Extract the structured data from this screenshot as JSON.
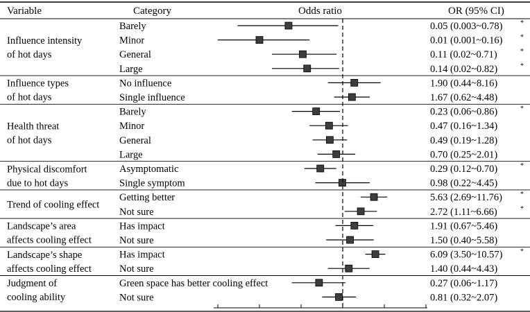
{
  "header": {
    "variable": "Variable",
    "category": "Category",
    "odds_ratio": "Odds ratio",
    "or_ci": "OR (95% CI)"
  },
  "groups": [
    {
      "variable": [
        "Influence intensity",
        "of hot days"
      ],
      "rows": [
        0,
        1,
        2,
        3
      ]
    },
    {
      "variable": [
        "Influence types",
        "of hot days"
      ],
      "rows": [
        4,
        5
      ]
    },
    {
      "variable": [
        "Health threat",
        "of hot days"
      ],
      "rows": [
        6,
        7,
        8,
        9
      ]
    },
    {
      "variable": [
        "Physical discomfort",
        "due to hot days"
      ],
      "rows": [
        10,
        11
      ]
    },
    {
      "variable": [
        "Trend of cooling effect"
      ],
      "rows": [
        12,
        13
      ]
    },
    {
      "variable": [
        "Landscape’s area",
        "affects cooling effect"
      ],
      "rows": [
        14,
        15
      ]
    },
    {
      "variable": [
        "Landscape’s shape",
        "affects cooling effect"
      ],
      "rows": [
        16,
        17
      ]
    },
    {
      "variable": [
        "Judgment of",
        "cooling ability"
      ],
      "rows": [
        18,
        19
      ]
    }
  ],
  "significance_marker": "*",
  "chart_data": {
    "type": "forest",
    "reference_line": 1,
    "x_scale": "log",
    "rows": [
      {
        "category": "Barely",
        "or": 0.05,
        "lower": 0.003,
        "upper": 0.78,
        "label": "0.05 (0.003~0.78)",
        "significant": true
      },
      {
        "category": "Minor",
        "or": 0.01,
        "lower": 0.001,
        "upper": 0.16,
        "label": "0.01 (0.001~0.16)",
        "significant": true
      },
      {
        "category": "General",
        "or": 0.11,
        "lower": 0.02,
        "upper": 0.71,
        "label": "0.11 (0.02~0.71)",
        "significant": true
      },
      {
        "category": "Large",
        "or": 0.14,
        "lower": 0.02,
        "upper": 0.82,
        "label": "0.14 (0.02~0.82)",
        "significant": true
      },
      {
        "category": "No influence",
        "or": 1.9,
        "lower": 0.44,
        "upper": 8.16,
        "label": "1.90 (0.44~8.16)",
        "significant": false
      },
      {
        "category": "Single influence",
        "or": 1.67,
        "lower": 0.62,
        "upper": 4.48,
        "label": "1.67 (0.62~4.48)",
        "significant": false
      },
      {
        "category": "Barely",
        "or": 0.23,
        "lower": 0.06,
        "upper": 0.86,
        "label": "0.23 (0.06~0.86)",
        "significant": true
      },
      {
        "category": "Minor",
        "or": 0.47,
        "lower": 0.16,
        "upper": 1.34,
        "label": "0.47 (0.16~1.34)",
        "significant": false
      },
      {
        "category": "General",
        "or": 0.49,
        "lower": 0.19,
        "upper": 1.28,
        "label": "0.49 (0.19~1.28)",
        "significant": false
      },
      {
        "category": "Large",
        "or": 0.7,
        "lower": 0.25,
        "upper": 2.01,
        "label": "0.70 (0.25~2.01)",
        "significant": false
      },
      {
        "category": "Asymptomatic",
        "or": 0.29,
        "lower": 0.12,
        "upper": 0.7,
        "label": "0.29 (0.12~0.70)",
        "significant": true
      },
      {
        "category": "Single symptom",
        "or": 0.98,
        "lower": 0.22,
        "upper": 4.45,
        "label": "0.98 (0.22~4.45)",
        "significant": false
      },
      {
        "category": "Getting better",
        "or": 5.63,
        "lower": 2.69,
        "upper": 11.76,
        "label": "5.63 (2.69~11.76)",
        "significant": true
      },
      {
        "category": "Not sure",
        "or": 2.72,
        "lower": 1.11,
        "upper": 6.66,
        "label": "2.72 (1.11~6.66)",
        "significant": true
      },
      {
        "category": "Has impact",
        "or": 1.91,
        "lower": 0.67,
        "upper": 5.46,
        "label": "1.91 (0.67~5.46)",
        "significant": false
      },
      {
        "category": "Not sure",
        "or": 1.5,
        "lower": 0.4,
        "upper": 5.58,
        "label": "1.50 (0.40~5.58)",
        "significant": false
      },
      {
        "category": "Has impact",
        "or": 6.09,
        "lower": 3.5,
        "upper": 10.57,
        "label": "6.09 (3.50~10.57)",
        "significant": true
      },
      {
        "category": "Not sure",
        "or": 1.4,
        "lower": 0.44,
        "upper": 4.43,
        "label": "1.40 (0.44~4.43)",
        "significant": false
      },
      {
        "category": "Green space has better cooling effect",
        "or": 0.27,
        "lower": 0.06,
        "upper": 1.17,
        "label": "0.27 (0.06~1.17)",
        "significant": false
      },
      {
        "category": "Not sure",
        "or": 0.81,
        "lower": 0.32,
        "upper": 2.07,
        "label": "0.81 (0.32~2.07)",
        "significant": false
      }
    ]
  }
}
